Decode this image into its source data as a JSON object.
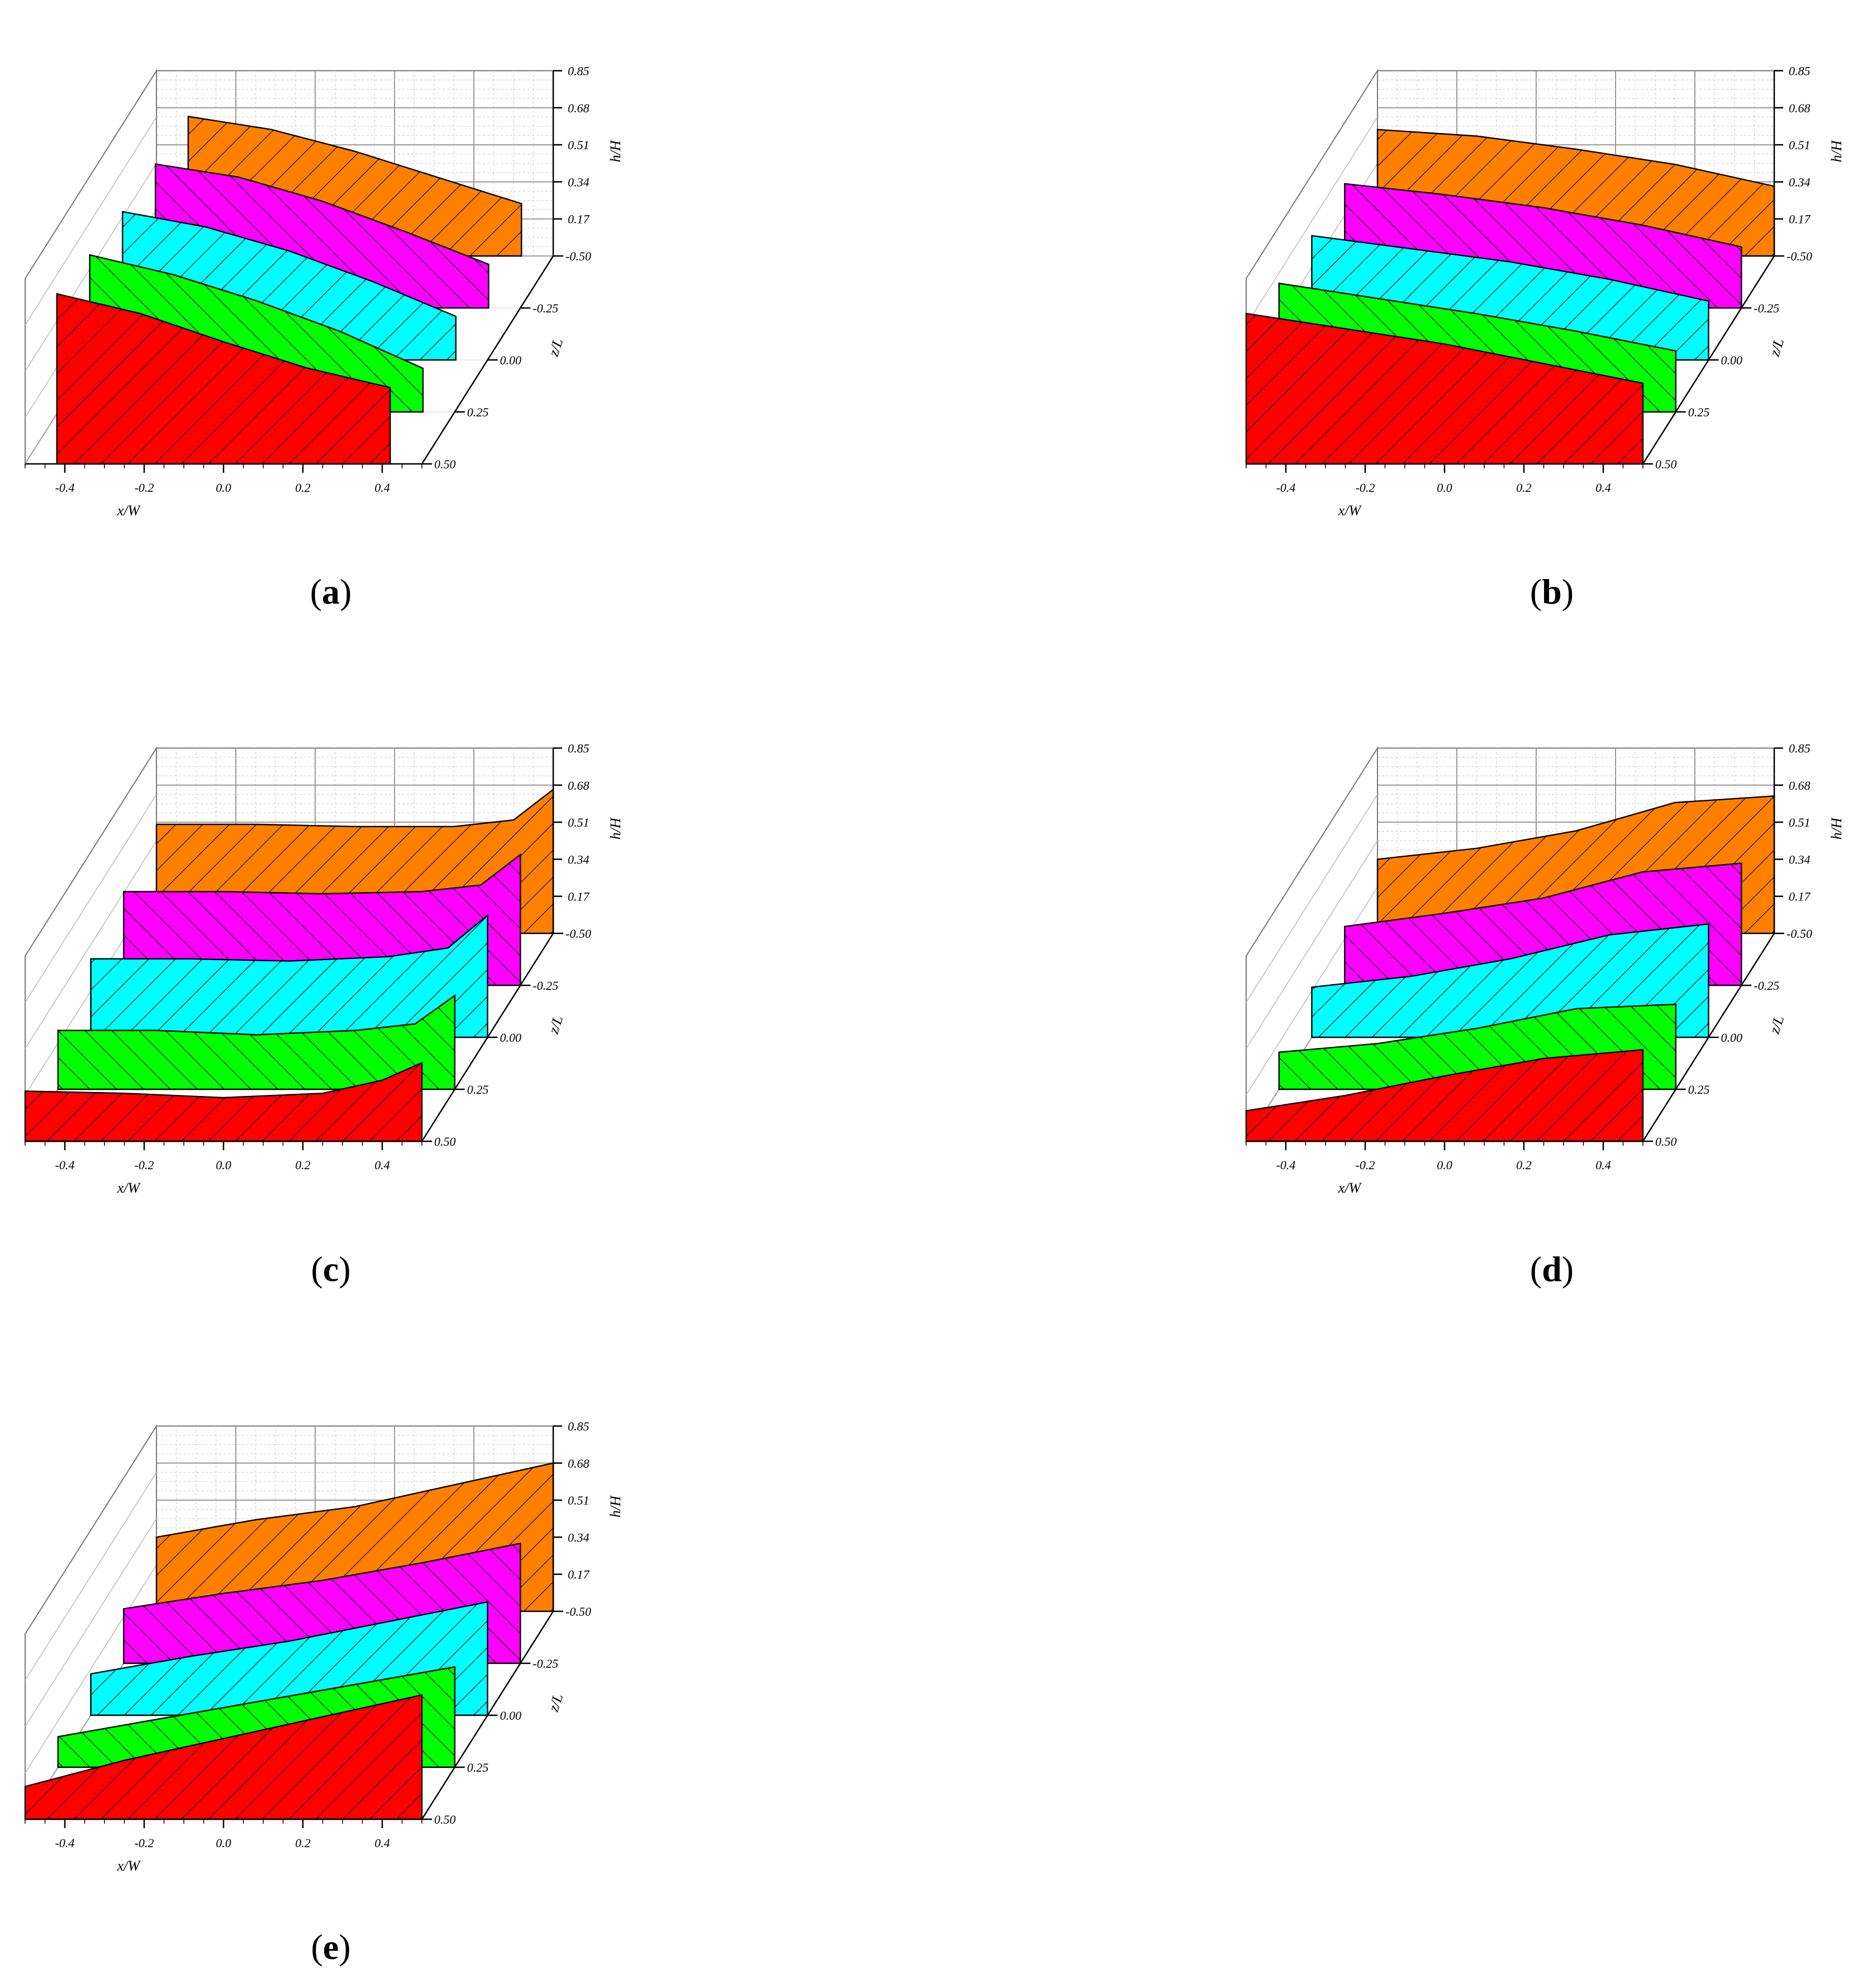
{
  "chart_data": [
    {
      "type": "area",
      "panel_label": "(a)",
      "panel_letter": "a",
      "xlabel": "x/W",
      "ylabel": "h/H",
      "zlabel": "z/L",
      "x_ticks": [
        "-0.4",
        "-0.2",
        "0.0",
        "0.2",
        "0.4"
      ],
      "h_ticks": [
        "0.17",
        "0.34",
        "0.51",
        "0.68",
        "0.85"
      ],
      "z_ticks": [
        "-0.50",
        "-0.25",
        "0.00",
        "0.25",
        "0.50"
      ],
      "xlim": [
        -0.5,
        0.5
      ],
      "ylim": [
        0,
        0.85
      ],
      "zlim": [
        -0.5,
        0.5
      ],
      "grid": true,
      "x": [
        -0.42,
        -0.21,
        0.0,
        0.21,
        0.42
      ],
      "series": [
        {
          "z": -0.5,
          "color": "#FF8000",
          "values": [
            0.64,
            0.58,
            0.48,
            0.36,
            0.24
          ]
        },
        {
          "z": -0.25,
          "color": "#FF00FF",
          "values": [
            0.66,
            0.6,
            0.49,
            0.35,
            0.2
          ]
        },
        {
          "z": 0.0,
          "color": "#00FFFF",
          "values": [
            0.68,
            0.61,
            0.5,
            0.36,
            0.2
          ]
        },
        {
          "z": 0.25,
          "color": "#00FF00",
          "values": [
            0.72,
            0.63,
            0.51,
            0.37,
            0.2
          ]
        },
        {
          "z": 0.5,
          "color": "#FF0000",
          "values": [
            0.78,
            0.69,
            0.56,
            0.44,
            0.35
          ]
        }
      ]
    },
    {
      "type": "area",
      "panel_label": "(b)",
      "panel_letter": "b",
      "xlabel": "x/W",
      "ylabel": "h/H",
      "zlabel": "z/L",
      "x_ticks": [
        "-0.4",
        "-0.2",
        "0.0",
        "0.2",
        "0.4"
      ],
      "h_ticks": [
        "0.17",
        "0.34",
        "0.51",
        "0.68",
        "0.85"
      ],
      "z_ticks": [
        "-0.50",
        "-0.25",
        "0.00",
        "0.25",
        "0.50"
      ],
      "xlim": [
        -0.5,
        0.5
      ],
      "ylim": [
        0,
        0.85
      ],
      "zlim": [
        -0.5,
        0.5
      ],
      "grid": true,
      "x": [
        -0.5,
        -0.25,
        0.0,
        0.25,
        0.5
      ],
      "series": [
        {
          "z": -0.5,
          "color": "#FF8000",
          "values": [
            0.58,
            0.55,
            0.49,
            0.42,
            0.32
          ]
        },
        {
          "z": -0.25,
          "color": "#FF00FF",
          "values": [
            0.57,
            0.52,
            0.46,
            0.38,
            0.28
          ]
        },
        {
          "z": 0.0,
          "color": "#00FFFF",
          "values": [
            0.57,
            0.51,
            0.45,
            0.37,
            0.27
          ]
        },
        {
          "z": 0.25,
          "color": "#00FF00",
          "values": [
            0.59,
            0.52,
            0.45,
            0.37,
            0.28
          ]
        },
        {
          "z": 0.5,
          "color": "#FF0000",
          "values": [
            0.69,
            0.62,
            0.55,
            0.46,
            0.37
          ]
        }
      ]
    },
    {
      "type": "area",
      "panel_label": "(c)",
      "panel_letter": "c",
      "xlabel": "x/W",
      "ylabel": "h/H",
      "zlabel": "z/L",
      "x_ticks": [
        "-0.4",
        "-0.2",
        "0.0",
        "0.2",
        "0.4"
      ],
      "h_ticks": [
        "0.17",
        "0.34",
        "0.51",
        "0.68",
        "0.85"
      ],
      "z_ticks": [
        "-0.50",
        "-0.25",
        "0.00",
        "0.25",
        "0.50"
      ],
      "xlim": [
        -0.5,
        0.5
      ],
      "ylim": [
        0,
        0.85
      ],
      "zlim": [
        -0.5,
        0.5
      ],
      "grid": true,
      "x": [
        -0.5,
        -0.25,
        0.0,
        0.25,
        0.4,
        0.5
      ],
      "series": [
        {
          "z": -0.5,
          "color": "#FF8000",
          "values": [
            0.5,
            0.5,
            0.49,
            0.49,
            0.52,
            0.66
          ]
        },
        {
          "z": -0.25,
          "color": "#FF00FF",
          "values": [
            0.43,
            0.43,
            0.42,
            0.43,
            0.46,
            0.6
          ]
        },
        {
          "z": 0.0,
          "color": "#00FFFF",
          "values": [
            0.36,
            0.36,
            0.35,
            0.37,
            0.41,
            0.56
          ]
        },
        {
          "z": 0.25,
          "color": "#00FF00",
          "values": [
            0.27,
            0.27,
            0.25,
            0.27,
            0.3,
            0.43
          ]
        },
        {
          "z": 0.5,
          "color": "#FF0000",
          "values": [
            0.23,
            0.22,
            0.2,
            0.22,
            0.28,
            0.36
          ]
        }
      ]
    },
    {
      "type": "area",
      "panel_label": "(d)",
      "panel_letter": "d",
      "xlabel": "x/W",
      "ylabel": "h/H",
      "zlabel": "z/L",
      "x_ticks": [
        "-0.4",
        "-0.2",
        "0.0",
        "0.2",
        "0.4"
      ],
      "h_ticks": [
        "0.17",
        "0.34",
        "0.51",
        "0.68",
        "0.85"
      ],
      "z_ticks": [
        "-0.50",
        "-0.25",
        "0.00",
        "0.25",
        "0.50"
      ],
      "xlim": [
        -0.5,
        0.5
      ],
      "ylim": [
        0,
        0.85
      ],
      "zlim": [
        -0.5,
        0.5
      ],
      "grid": true,
      "x": [
        -0.5,
        -0.25,
        0.0,
        0.25,
        0.5
      ],
      "series": [
        {
          "z": -0.5,
          "color": "#FF8000",
          "values": [
            0.34,
            0.39,
            0.47,
            0.6,
            0.63
          ]
        },
        {
          "z": -0.25,
          "color": "#FF00FF",
          "values": [
            0.27,
            0.33,
            0.4,
            0.52,
            0.56
          ]
        },
        {
          "z": 0.0,
          "color": "#00FFFF",
          "values": [
            0.23,
            0.28,
            0.36,
            0.47,
            0.52
          ]
        },
        {
          "z": 0.25,
          "color": "#00FF00",
          "values": [
            0.17,
            0.21,
            0.28,
            0.37,
            0.39
          ]
        },
        {
          "z": 0.5,
          "color": "#FF0000",
          "values": [
            0.14,
            0.21,
            0.3,
            0.38,
            0.42
          ]
        }
      ]
    },
    {
      "type": "area",
      "panel_label": "(e)",
      "panel_letter": "e",
      "xlabel": "x/W",
      "ylabel": "h/H",
      "zlabel": "z/L",
      "x_ticks": [
        "-0.4",
        "-0.2",
        "0.0",
        "0.2",
        "0.4"
      ],
      "h_ticks": [
        "0.17",
        "0.34",
        "0.51",
        "0.68",
        "0.85"
      ],
      "z_ticks": [
        "-0.50",
        "-0.25",
        "0.00",
        "0.25",
        "0.50"
      ],
      "xlim": [
        -0.5,
        0.5
      ],
      "ylim": [
        0,
        0.85
      ],
      "zlim": [
        -0.5,
        0.5
      ],
      "grid": true,
      "x": [
        -0.5,
        -0.25,
        0.0,
        0.25,
        0.5
      ],
      "series": [
        {
          "z": -0.5,
          "color": "#FF8000",
          "values": [
            0.34,
            0.42,
            0.48,
            0.58,
            0.68
          ]
        },
        {
          "z": -0.25,
          "color": "#FF00FF",
          "values": [
            0.25,
            0.32,
            0.38,
            0.46,
            0.55
          ]
        },
        {
          "z": 0.0,
          "color": "#00FFFF",
          "values": [
            0.19,
            0.27,
            0.34,
            0.43,
            0.52
          ]
        },
        {
          "z": 0.25,
          "color": "#00FF00",
          "values": [
            0.14,
            0.22,
            0.3,
            0.38,
            0.46
          ]
        },
        {
          "z": 0.5,
          "color": "#FF0000",
          "values": [
            0.15,
            0.27,
            0.37,
            0.47,
            0.57
          ]
        }
      ]
    }
  ]
}
